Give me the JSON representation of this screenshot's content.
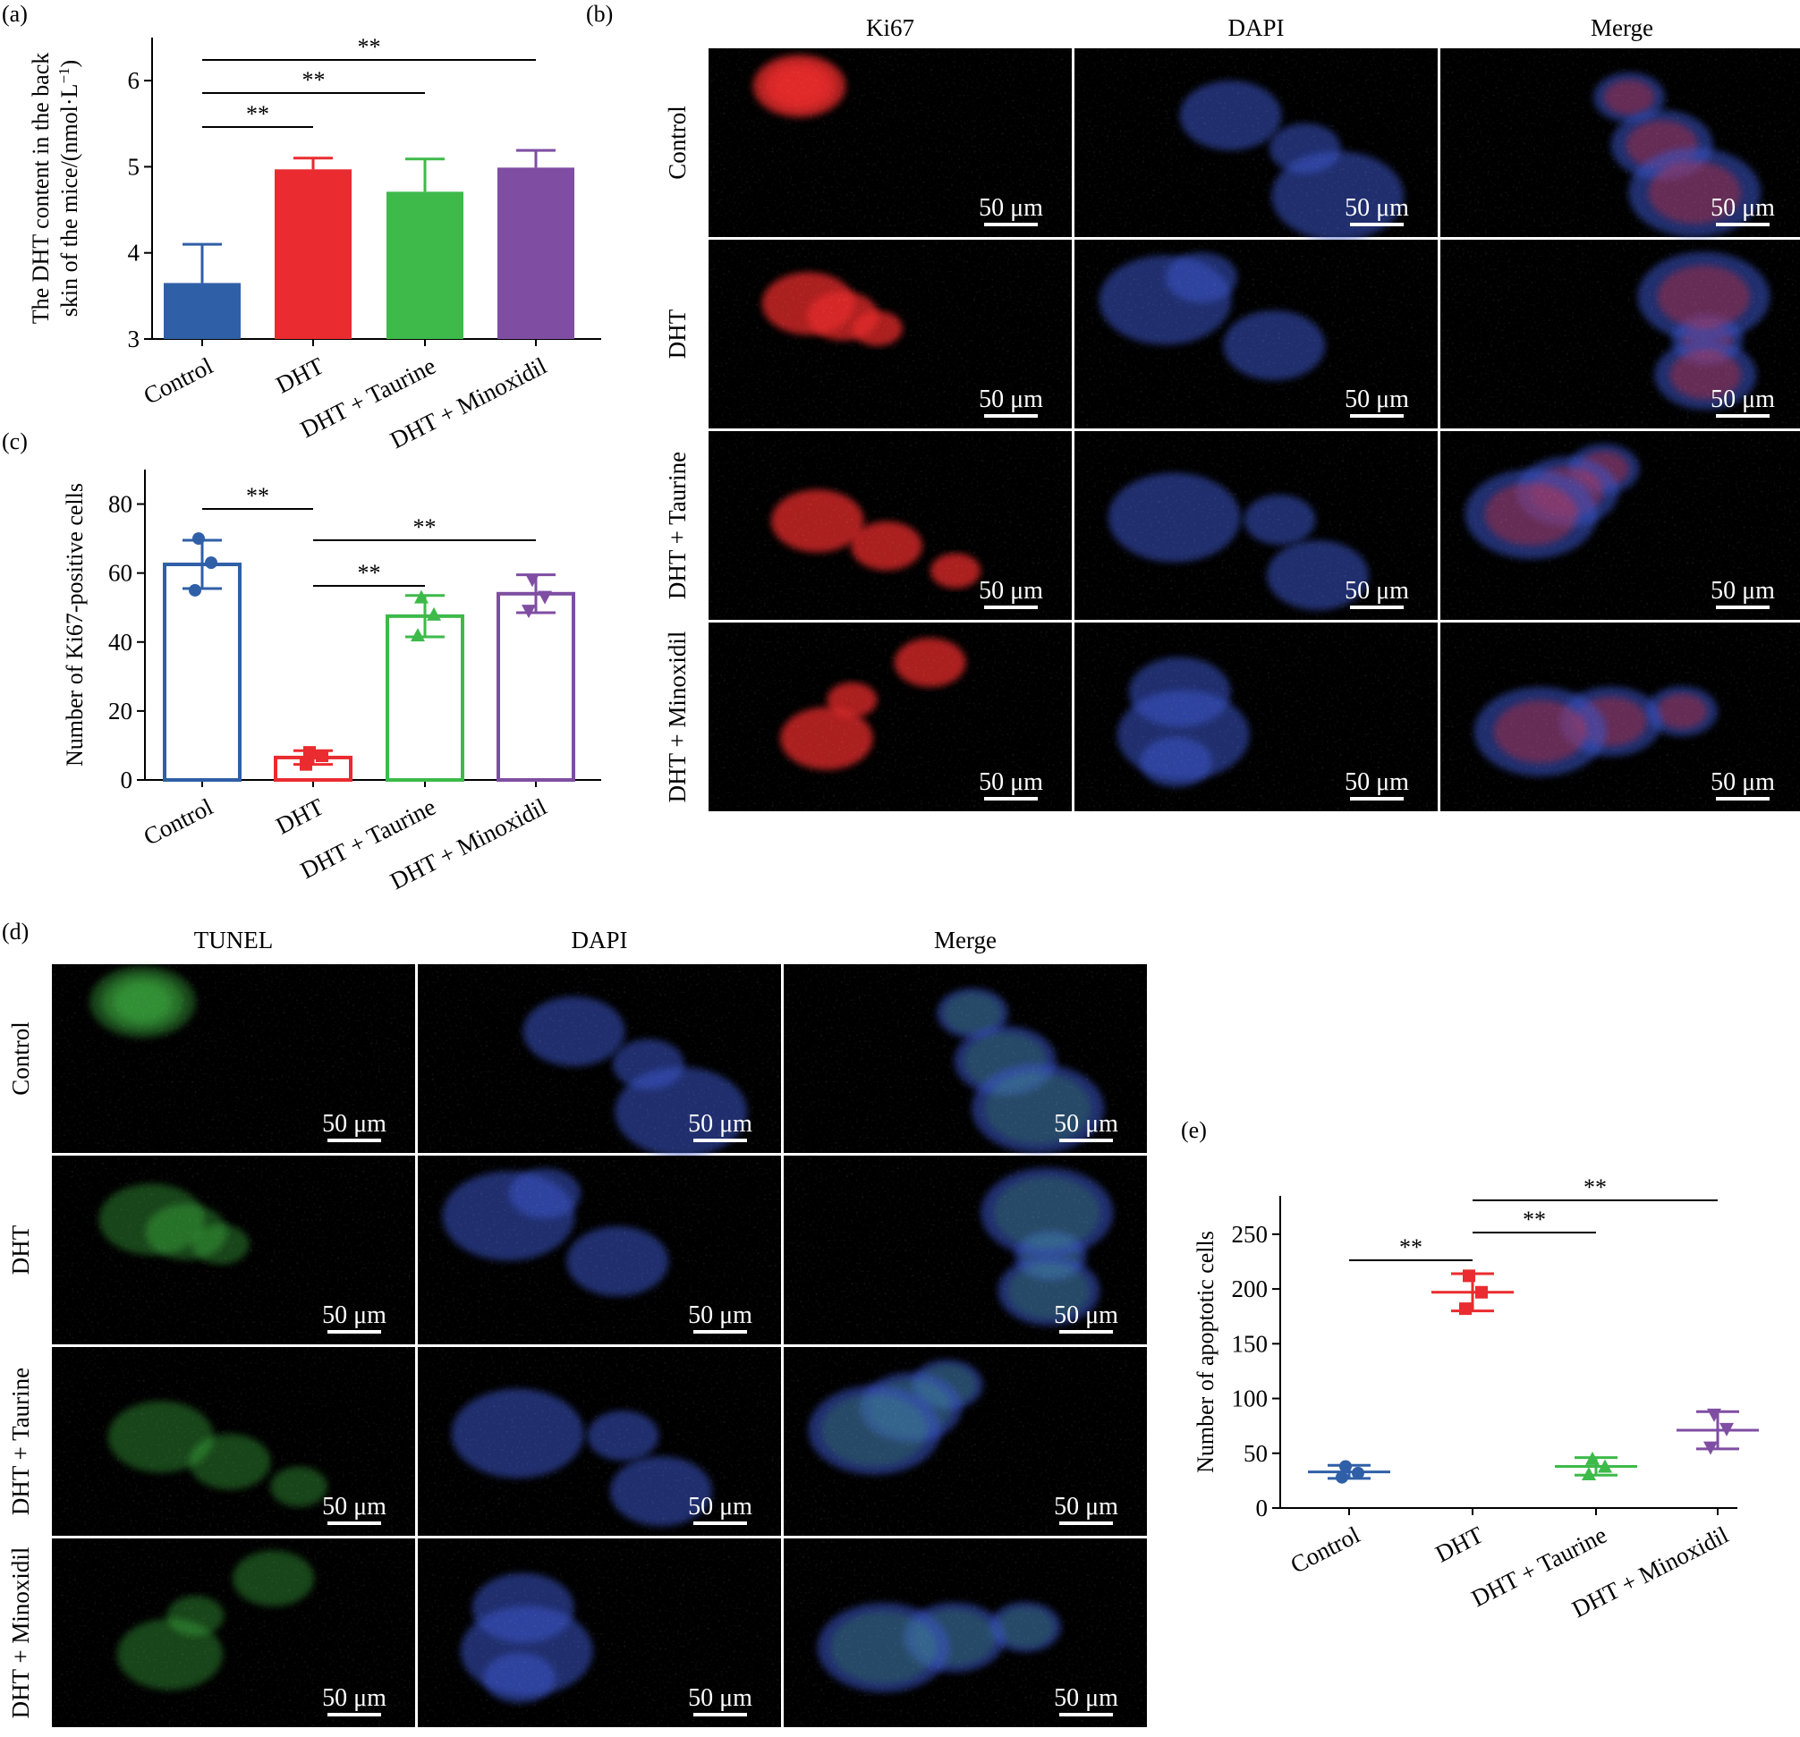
{
  "colors": {
    "control": "#2f5fa7",
    "dht": "#ea2b2f",
    "taurine": "#3dba4a",
    "minoxidil": "#7f4ea3",
    "dapi": "#3a55c8",
    "ki67": "#e52b2b",
    "tunel": "#45c548"
  },
  "panels": {
    "a": "(a)",
    "b": "(b)",
    "c": "(c)",
    "d": "(d)",
    "e": "(e)"
  },
  "scale_bar": "50 μm",
  "microscopy_b": {
    "columns": [
      "Ki67",
      "DAPI",
      "Merge"
    ],
    "rows": [
      "Control",
      "DHT",
      "DHT + Taurine",
      "DHT + Minoxidil"
    ]
  },
  "microscopy_d": {
    "columns": [
      "TUNEL",
      "DAPI",
      "Merge"
    ],
    "rows": [
      "Control",
      "DHT",
      "DHT + Taurine",
      "DHT + Minoxidil"
    ]
  },
  "significance": "**",
  "chart_data": [
    {
      "panel": "a",
      "type": "bar",
      "categories": [
        "Control",
        "DHT",
        "DHT + Taurine",
        "DHT + Minoxidil"
      ],
      "values": [
        3.65,
        4.97,
        4.71,
        4.99
      ],
      "errors": [
        0.45,
        0.13,
        0.38,
        0.2
      ],
      "ylabel": "The DHT content in the back skin of the mice/(nmol·L⁻¹)",
      "ylabel_line1": "The DHT content in the back",
      "ylabel_line2": "skin of the mice/(nmol·L",
      "ylabel_sup": "−1",
      "ylabel_tail": ")",
      "ylim": [
        3,
        6.5
      ],
      "yticks": [
        3,
        4,
        5,
        6
      ],
      "comparisons": [
        [
          0,
          1,
          "**"
        ],
        [
          0,
          2,
          "**"
        ],
        [
          0,
          3,
          "**"
        ]
      ]
    },
    {
      "panel": "c",
      "type": "bar",
      "style": "hollow",
      "categories": [
        "Control",
        "DHT",
        "DHT + Taurine",
        "DHT + Minoxidil"
      ],
      "values": [
        62.5,
        6.5,
        47.5,
        54.0
      ],
      "errors": [
        7.0,
        2.0,
        6.0,
        5.5
      ],
      "points": [
        [
          70,
          63,
          55
        ],
        [
          8,
          7,
          4.5
        ],
        [
          53,
          48,
          42
        ],
        [
          58,
          53,
          49
        ]
      ],
      "ylabel": "Number of Ki67-positive cells",
      "ylim": [
        0,
        90
      ],
      "yticks": [
        0,
        20,
        40,
        60,
        80
      ],
      "comparisons": [
        [
          0,
          1,
          "**"
        ],
        [
          1,
          2,
          "**"
        ],
        [
          1,
          3,
          "**"
        ]
      ]
    },
    {
      "panel": "e",
      "type": "scatter",
      "categories": [
        "Control",
        "DHT",
        "DHT + Taurine",
        "DHT + Minoxidil"
      ],
      "values": [
        33,
        197,
        38,
        71
      ],
      "errors": [
        6,
        17,
        8,
        17
      ],
      "points": [
        [
          38,
          32,
          28
        ],
        [
          212,
          197,
          182
        ],
        [
          45,
          38,
          31
        ],
        [
          85,
          72,
          55
        ]
      ],
      "ylabel": "Number of apoptotic cells",
      "ylim": [
        0,
        285
      ],
      "yticks": [
        0,
        50,
        100,
        150,
        200,
        250
      ],
      "comparisons": [
        [
          0,
          1,
          "**"
        ],
        [
          1,
          2,
          "**"
        ],
        [
          1,
          3,
          "**"
        ]
      ]
    }
  ]
}
